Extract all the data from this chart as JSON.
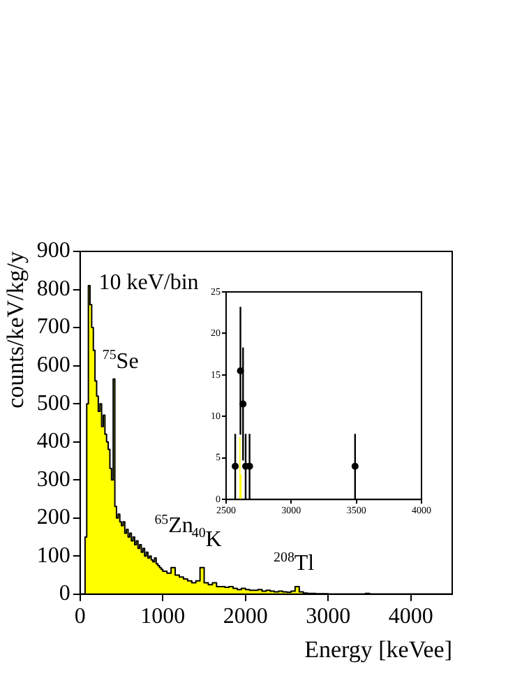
{
  "chart_data": [
    {
      "type": "histogram",
      "xlabel": "Energy [keVee]",
      "ylabel": "counts/keV/kg/y",
      "color": "#ffff00",
      "bins": [
        0,
        20,
        40,
        60,
        80,
        100,
        120,
        140,
        160,
        180,
        200,
        220,
        240,
        260,
        280,
        300,
        320,
        340,
        360,
        380,
        400,
        420,
        440,
        460,
        480,
        500,
        520,
        540,
        560,
        580,
        600,
        620,
        640,
        660,
        680,
        700,
        720,
        740,
        760,
        780,
        800,
        820,
        840,
        860,
        880,
        900,
        920,
        940,
        960,
        980,
        1000,
        1050,
        1100,
        1150,
        1200,
        1250,
        1300,
        1350,
        1400,
        1450,
        1500,
        1550,
        1600,
        1650,
        1700,
        1750,
        1800,
        1850,
        1900,
        1950,
        2000,
        2050,
        2100,
        2150,
        2200,
        2250,
        2300,
        2350,
        2400,
        2450,
        2500,
        2550,
        2600,
        2650,
        2700,
        2750,
        2800,
        2850,
        2900,
        2950,
        3000,
        3450,
        3500,
        4500
      ],
      "values": [
        0,
        0,
        0,
        150,
        500,
        810,
        760,
        700,
        640,
        560,
        520,
        480,
        500,
        440,
        470,
        420,
        400,
        380,
        330,
        300,
        565,
        230,
        200,
        210,
        190,
        180,
        190,
        160,
        170,
        150,
        160,
        140,
        150,
        130,
        140,
        120,
        130,
        110,
        120,
        100,
        110,
        95,
        100,
        90,
        85,
        95,
        80,
        75,
        70,
        65,
        60,
        55,
        70,
        50,
        45,
        40,
        35,
        30,
        35,
        70,
        30,
        25,
        30,
        20,
        20,
        18,
        20,
        15,
        12,
        15,
        12,
        10,
        10,
        12,
        8,
        10,
        8,
        6,
        8,
        6,
        5,
        8,
        20,
        6,
        3,
        2,
        2,
        1,
        1,
        1,
        0,
        2,
        0
      ],
      "xlim": [
        0,
        4500
      ],
      "xticks": [
        0,
        1000,
        2000,
        3000,
        4000
      ],
      "ylim": [
        0,
        900
      ],
      "yticks": [
        0,
        100,
        200,
        300,
        400,
        500,
        600,
        700,
        800,
        900
      ],
      "annotations": [
        "10 keV/bin",
        "$^{75}$Se",
        "$^{65}$Zn",
        "$^{40}$K",
        "$^{208}$Tl"
      ]
    },
    {
      "type": "scatter",
      "marker": "circle",
      "xlim": [
        2500,
        4000
      ],
      "xticks": [
        2500,
        3000,
        3500,
        4000
      ],
      "ylim": [
        0,
        25
      ],
      "yticks": [
        0,
        5,
        10,
        15,
        20,
        25
      ],
      "series": [
        {
          "type": "histogram",
          "color": "#ffff00",
          "bins": [
            2600,
            2610,
            2620
          ],
          "values": [
            7.5,
            3
          ]
        },
        {
          "color": "#000000",
          "x": [
            2570,
            2610,
            2630,
            2650,
            2680,
            3490
          ],
          "values": [
            4,
            15.5,
            11.5,
            4,
            4,
            4
          ],
          "errors": [
            3.9,
            7.7,
            6.8,
            3.9,
            3.9,
            3.9
          ]
        }
      ]
    }
  ]
}
